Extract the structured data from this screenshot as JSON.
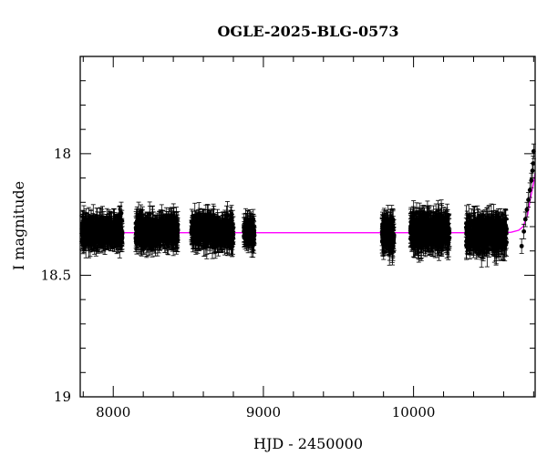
{
  "chart_data": {
    "type": "scatter",
    "title": "OGLE-2025-BLG-0573",
    "xlabel": "HJD - 2450000",
    "ylabel": "I magnitude",
    "xlim": [
      7780,
      10810
    ],
    "ylim": [
      19.0,
      17.6
    ],
    "y_inverted": true,
    "grid": false,
    "x_ticks": [
      8000,
      9000,
      10000
    ],
    "y_ticks": [
      18,
      18.5,
      19
    ],
    "x_tick_labels": [
      "8000",
      "9000",
      "10000"
    ],
    "y_tick_labels": [
      "18",
      "18.5",
      "19"
    ],
    "colors": {
      "data": "#000000",
      "model": "#ff00ff",
      "frame": "#000000"
    },
    "seasons": [
      {
        "x_start": 7790,
        "x_end": 8060,
        "mag_mean": 18.32,
        "mag_scatter": 0.045,
        "err_typical": 0.04
      },
      {
        "x_start": 8150,
        "x_end": 8430,
        "mag_mean": 18.32,
        "mag_scatter": 0.045,
        "err_typical": 0.04
      },
      {
        "x_start": 8520,
        "x_end": 8800,
        "mag_mean": 18.32,
        "mag_scatter": 0.045,
        "err_typical": 0.04
      },
      {
        "x_start": 8870,
        "x_end": 8940,
        "mag_mean": 18.32,
        "mag_scatter": 0.04,
        "err_typical": 0.04
      },
      {
        "x_start": 9790,
        "x_end": 9870,
        "mag_mean": 18.33,
        "mag_scatter": 0.05,
        "err_typical": 0.05
      },
      {
        "x_start": 9980,
        "x_end": 10240,
        "mag_mean": 18.32,
        "mag_scatter": 0.045,
        "err_typical": 0.05
      },
      {
        "x_start": 10350,
        "x_end": 10620,
        "mag_mean": 18.33,
        "mag_scatter": 0.045,
        "err_typical": 0.05
      }
    ],
    "rise_points": [
      {
        "x": 10720,
        "y": 18.38
      },
      {
        "x": 10735,
        "y": 18.32
      },
      {
        "x": 10745,
        "y": 18.27
      },
      {
        "x": 10755,
        "y": 18.23
      },
      {
        "x": 10765,
        "y": 18.19
      },
      {
        "x": 10775,
        "y": 18.15
      },
      {
        "x": 10785,
        "y": 18.11
      },
      {
        "x": 10792,
        "y": 18.07
      },
      {
        "x": 10797,
        "y": 18.04
      },
      {
        "x": 10800,
        "y": 17.99
      }
    ],
    "model": {
      "baseline_mag": 18.325,
      "points": [
        [
          7780,
          18.325
        ],
        [
          10600,
          18.325
        ],
        [
          10650,
          18.323
        ],
        [
          10700,
          18.315
        ],
        [
          10730,
          18.3
        ],
        [
          10760,
          18.25
        ],
        [
          10780,
          18.18
        ],
        [
          10800,
          18.12
        ],
        [
          10810,
          18.08
        ]
      ]
    }
  }
}
